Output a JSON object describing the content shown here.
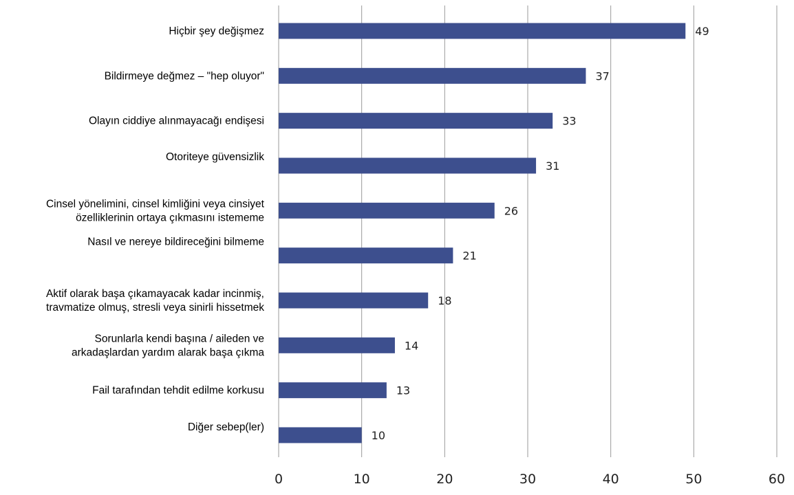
{
  "chart_data": {
    "type": "bar",
    "orientation": "horizontal",
    "categories": [
      [
        "Hiçbir şey değişmez"
      ],
      [
        "Bildirmeye değmez – \"hep oluyor\""
      ],
      [
        "Olayın ciddiye alınmayacağı endişesi"
      ],
      [
        "Otoriteye güvensizlik"
      ],
      [
        "Cinsel yönelimini, cinsel kimliğini veya cinsiyet",
        "özelliklerinin ortaya   çıkmasını istememe"
      ],
      [
        "Nasıl ve nereye bildireceğini bilmeme"
      ],
      [
        "Aktif olarak başa çıkamayacak kadar incinmiş,",
        "travmatize olmuş, stresli veya sinirli hissetmek"
      ],
      [
        "Sorunlarla kendi başına / aileden ve",
        "arkadaşlardan yardım alarak başa çıkma"
      ],
      [
        "Fail tarafından tehdit edilme korkusu"
      ],
      [
        "Diğer sebep(ler)"
      ]
    ],
    "values": [
      49,
      37,
      33,
      31,
      26,
      21,
      18,
      14,
      13,
      10
    ],
    "value_labels": [
      "49",
      "37",
      "33",
      "31",
      "26",
      "21",
      "18",
      "14",
      "13",
      "10"
    ],
    "x_ticks": [
      "0",
      "10",
      "20",
      "30",
      "40",
      "50",
      "60"
    ],
    "xlim": [
      0,
      60
    ],
    "bar_color": "#3d4f8e",
    "gridline_color": "#9a9a9a",
    "grid": "vertical",
    "legend": "none"
  }
}
